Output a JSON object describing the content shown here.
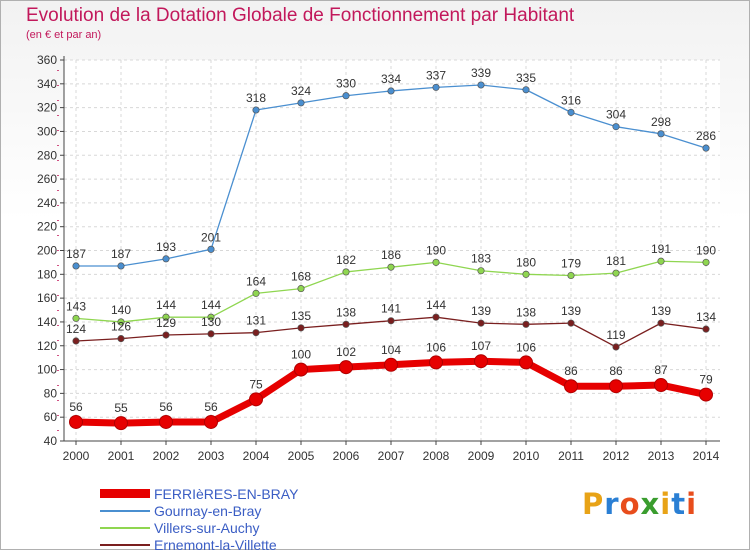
{
  "header": {
    "title": "Evolution de la Dotation Globale de Fonctionnement par Habitant",
    "subtitle": "(en € et par an)"
  },
  "logo": {
    "text": "Proxiti",
    "colors": [
      "#e8a317",
      "#2a7fd4",
      "#e84d1c",
      "#3a9d2e",
      "#e8a317",
      "#2a7fd4",
      "#e84d1c"
    ]
  },
  "chart_data": {
    "type": "line",
    "title": "Evolution de la Dotation Globale de Fonctionnement par Habitant",
    "subtitle": "(en € et par an)",
    "xlabel": "",
    "ylabel": "",
    "ylim": [
      40,
      360
    ],
    "yticks": [
      40,
      60,
      80,
      100,
      120,
      140,
      160,
      180,
      200,
      220,
      240,
      260,
      280,
      300,
      320,
      340,
      360
    ],
    "grid": true,
    "legend_position": "bottom-left",
    "x": [
      "2000",
      "2001",
      "2002",
      "2003",
      "2004",
      "2005",
      "2006",
      "2007",
      "2008",
      "2009",
      "2010",
      "2011",
      "2012",
      "2013",
      "2014"
    ],
    "series": [
      {
        "name": "FERRIèRES-EN-BRAY",
        "color": "#e60000",
        "values": [
          56,
          55,
          56,
          56,
          75,
          100,
          102,
          104,
          106,
          107,
          106,
          86,
          86,
          87,
          79
        ]
      },
      {
        "name": "Gournay-en-Bray",
        "color": "#4a8fd0",
        "values": [
          187,
          187,
          193,
          201,
          318,
          324,
          330,
          334,
          337,
          339,
          335,
          316,
          304,
          298,
          286
        ]
      },
      {
        "name": "Villers-sur-Auchy",
        "color": "#8fd650",
        "values": [
          143,
          140,
          144,
          144,
          164,
          168,
          182,
          186,
          190,
          183,
          180,
          179,
          181,
          191,
          190
        ]
      },
      {
        "name": "Ernemont-la-Villette",
        "color": "#7a1f1f",
        "values": [
          124,
          126,
          129,
          130,
          131,
          135,
          138,
          141,
          144,
          139,
          138,
          139,
          119,
          139,
          134
        ]
      }
    ]
  }
}
